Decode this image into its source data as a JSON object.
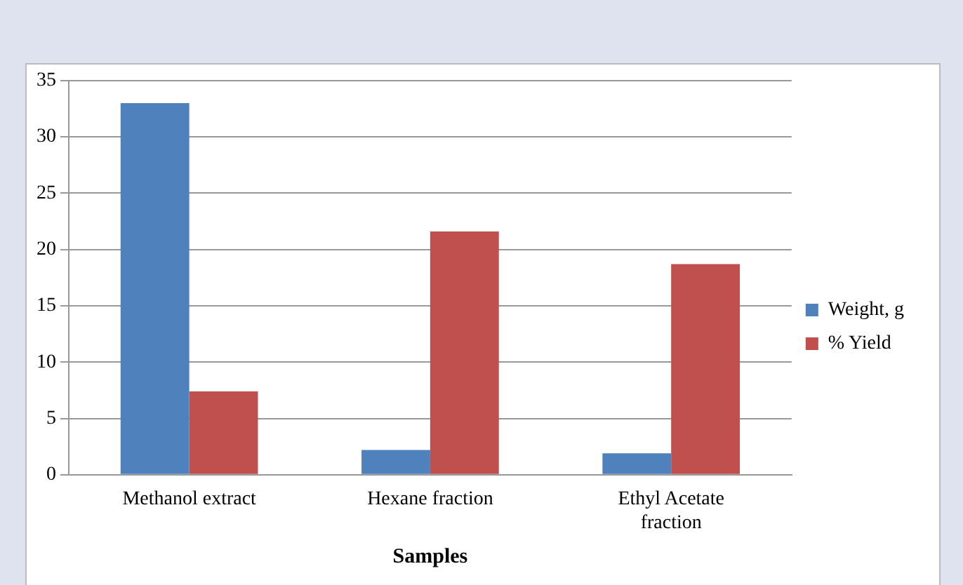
{
  "chart_data": {
    "type": "bar",
    "xlabel": "Samples",
    "categories": [
      "Methanol extract",
      "Hexane fraction",
      "Ethyl Acetate fraction"
    ],
    "series": [
      {
        "name": "Weight, g",
        "color": "#4f81bd",
        "values": [
          33,
          2.2,
          1.9
        ]
      },
      {
        "name": "% Yield",
        "color": "#c0504d",
        "values": [
          7.4,
          21.6,
          18.7
        ]
      }
    ],
    "ylim": [
      0,
      35
    ],
    "yticks": [
      0,
      5,
      10,
      15,
      20,
      25,
      30,
      35
    ],
    "grid": "y",
    "legend": "right"
  }
}
